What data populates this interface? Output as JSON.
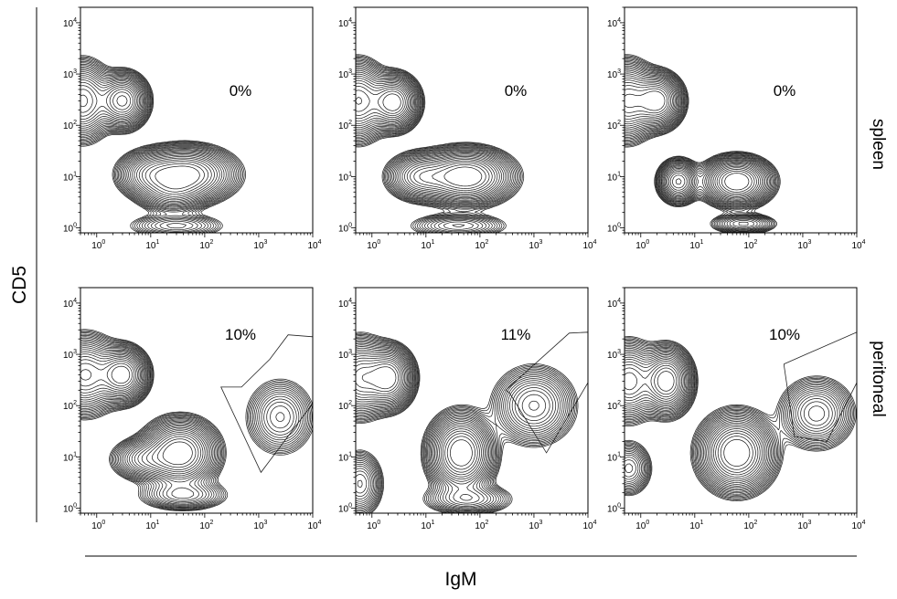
{
  "figure": {
    "y_axis_title": "CD5",
    "x_axis_title": "IgM",
    "rows": [
      {
        "label": "spleen"
      },
      {
        "label": "peritoneal"
      }
    ]
  },
  "chart_data": [
    {
      "type": "contour",
      "row": "spleen",
      "column": 1,
      "xlabel": "IgM",
      "ylabel": "CD5",
      "xscale": "log",
      "yscale": "log",
      "xlim": [
        0.5,
        10000
      ],
      "ylim": [
        0.8,
        20000
      ],
      "xticks": [
        "10^0",
        "10^1",
        "10^2",
        "10^3",
        "10^4"
      ],
      "yticks": [
        "10^0",
        "10^1",
        "10^2",
        "10^3",
        "10^4"
      ],
      "gate_percent": "0%",
      "gate": null,
      "populations": [
        {
          "x": 0.55,
          "y": 300,
          "sx": 0.25,
          "sy": 0.35,
          "w": 1.0
        },
        {
          "x": 3,
          "y": 300,
          "sx": 0.22,
          "sy": 0.25,
          "w": 1.2
        },
        {
          "x": 10,
          "y": 11,
          "sx": 0.3,
          "sy": 0.22,
          "w": 0.55
        },
        {
          "x": 45,
          "y": 11,
          "sx": 0.42,
          "sy": 0.25,
          "w": 1.3
        },
        {
          "x": 25,
          "y": 5,
          "sx": 0.3,
          "sy": 0.2,
          "w": 0.45
        },
        {
          "x": 30,
          "y": 1.1,
          "sx": 0.45,
          "sy": 0.12,
          "w": 0.25
        }
      ]
    },
    {
      "type": "contour",
      "row": "spleen",
      "column": 2,
      "xlabel": "IgM",
      "ylabel": "CD5",
      "xscale": "log",
      "yscale": "log",
      "xlim": [
        0.5,
        10000
      ],
      "ylim": [
        0.8,
        20000
      ],
      "xticks": [
        "10^0",
        "10^1",
        "10^2",
        "10^3",
        "10^4"
      ],
      "yticks": [
        "10^0",
        "10^1",
        "10^2",
        "10^3",
        "10^4"
      ],
      "gate_percent": "0%",
      "gate": null,
      "populations": [
        {
          "x": 0.55,
          "y": 300,
          "sx": 0.25,
          "sy": 0.35,
          "w": 1.0
        },
        {
          "x": 2.5,
          "y": 280,
          "sx": 0.22,
          "sy": 0.25,
          "w": 1.2
        },
        {
          "x": 8,
          "y": 10,
          "sx": 0.3,
          "sy": 0.22,
          "w": 0.6
        },
        {
          "x": 55,
          "y": 10,
          "sx": 0.4,
          "sy": 0.25,
          "w": 1.3
        },
        {
          "x": 40,
          "y": 1.1,
          "sx": 0.45,
          "sy": 0.12,
          "w": 0.25
        }
      ]
    },
    {
      "type": "contour",
      "row": "spleen",
      "column": 3,
      "xlabel": "IgM",
      "ylabel": "CD5",
      "xscale": "log",
      "yscale": "log",
      "xlim": [
        0.5,
        10000
      ],
      "ylim": [
        0.8,
        20000
      ],
      "xticks": [
        "10^0",
        "10^1",
        "10^2",
        "10^3",
        "10^4"
      ],
      "yticks": [
        "10^0",
        "10^1",
        "10^2",
        "10^3",
        "10^4"
      ],
      "gate_percent": "0%",
      "gate": null,
      "populations": [
        {
          "x": 0.55,
          "y": 300,
          "sx": 0.25,
          "sy": 0.35,
          "w": 1.0
        },
        {
          "x": 2,
          "y": 300,
          "sx": 0.22,
          "sy": 0.25,
          "w": 1.2
        },
        {
          "x": 5,
          "y": 8,
          "sx": 0.18,
          "sy": 0.2,
          "w": 0.75
        },
        {
          "x": 60,
          "y": 8,
          "sx": 0.3,
          "sy": 0.22,
          "w": 1.3
        },
        {
          "x": 80,
          "y": 1.2,
          "sx": 0.3,
          "sy": 0.1,
          "w": 0.3
        }
      ]
    },
    {
      "type": "contour",
      "row": "peritoneal",
      "column": 1,
      "xlabel": "IgM",
      "ylabel": "CD5",
      "xscale": "log",
      "yscale": "log",
      "xlim": [
        0.5,
        10000
      ],
      "ylim": [
        0.8,
        20000
      ],
      "xticks": [
        "10^0",
        "10^1",
        "10^2",
        "10^3",
        "10^4"
      ],
      "yticks": [
        "10^0",
        "10^1",
        "10^2",
        "10^3",
        "10^4"
      ],
      "gate_percent": "10%",
      "gate": [
        [
          200,
          230
        ],
        [
          1100,
          5
        ],
        [
          10000,
          110
        ],
        [
          10000,
          2200
        ],
        [
          3500,
          2400
        ],
        [
          1600,
          800
        ],
        [
          480,
          230
        ]
      ],
      "populations": [
        {
          "x": 0.6,
          "y": 400,
          "sx": 0.3,
          "sy": 0.35,
          "w": 0.9
        },
        {
          "x": 3,
          "y": 400,
          "sx": 0.22,
          "sy": 0.25,
          "w": 1.2
        },
        {
          "x": 35,
          "y": 12,
          "sx": 0.32,
          "sy": 0.3,
          "w": 1.3
        },
        {
          "x": 8,
          "y": 9,
          "sx": 0.3,
          "sy": 0.2,
          "w": 0.45
        },
        {
          "x": 40,
          "y": 1.8,
          "sx": 0.4,
          "sy": 0.15,
          "w": 0.3
        },
        {
          "x": 2500,
          "y": 60,
          "sx": 0.3,
          "sy": 0.35,
          "w": 0.35
        }
      ]
    },
    {
      "type": "contour",
      "row": "peritoneal",
      "column": 2,
      "xlabel": "IgM",
      "ylabel": "CD5",
      "xscale": "log",
      "yscale": "log",
      "xlim": [
        0.5,
        10000
      ],
      "ylim": [
        0.8,
        20000
      ],
      "xticks": [
        "10^0",
        "10^1",
        "10^2",
        "10^3",
        "10^4"
      ],
      "yticks": [
        "10^0",
        "10^1",
        "10^2",
        "10^3",
        "10^4"
      ],
      "gate_percent": "11%",
      "gate": [
        [
          300,
          200
        ],
        [
          4500,
          2600
        ],
        [
          10000,
          2700
        ],
        [
          10000,
          280
        ],
        [
          1700,
          12
        ],
        [
          350,
          180
        ]
      ],
      "populations": [
        {
          "x": 0.6,
          "y": 350,
          "sx": 0.25,
          "sy": 0.35,
          "w": 0.9
        },
        {
          "x": 2,
          "y": 350,
          "sx": 0.22,
          "sy": 0.28,
          "w": 1.2
        },
        {
          "x": 45,
          "y": 12,
          "sx": 0.28,
          "sy": 0.35,
          "w": 1.3
        },
        {
          "x": 1000,
          "y": 100,
          "sx": 0.35,
          "sy": 0.35,
          "w": 0.55
        },
        {
          "x": 0.6,
          "y": 3,
          "sx": 0.2,
          "sy": 0.3,
          "w": 0.4
        },
        {
          "x": 60,
          "y": 1.5,
          "sx": 0.4,
          "sy": 0.15,
          "w": 0.3
        }
      ]
    },
    {
      "type": "contour",
      "row": "peritoneal",
      "column": 3,
      "xlabel": "IgM",
      "ylabel": "CD5",
      "xscale": "log",
      "yscale": "log",
      "xlim": [
        0.5,
        10000
      ],
      "ylim": [
        0.8,
        20000
      ],
      "xticks": [
        "10^0",
        "10^1",
        "10^2",
        "10^3",
        "10^4"
      ],
      "yticks": [
        "10^0",
        "10^1",
        "10^2",
        "10^3",
        "10^4"
      ],
      "gate_percent": "10%",
      "gate": [
        [
          450,
          650
        ],
        [
          10000,
          2700
        ],
        [
          10000,
          280
        ],
        [
          2800,
          20
        ],
        [
          700,
          25
        ],
        [
          450,
          600
        ]
      ],
      "populations": [
        {
          "x": 0.6,
          "y": 300,
          "sx": 0.25,
          "sy": 0.35,
          "w": 0.8
        },
        {
          "x": 3,
          "y": 300,
          "sx": 0.22,
          "sy": 0.3,
          "w": 1.2
        },
        {
          "x": 60,
          "y": 12,
          "sx": 0.32,
          "sy": 0.35,
          "w": 1.3
        },
        {
          "x": 1800,
          "y": 70,
          "sx": 0.32,
          "sy": 0.32,
          "w": 0.5
        },
        {
          "x": 0.6,
          "y": 6,
          "sx": 0.2,
          "sy": 0.25,
          "w": 0.35
        }
      ]
    }
  ]
}
